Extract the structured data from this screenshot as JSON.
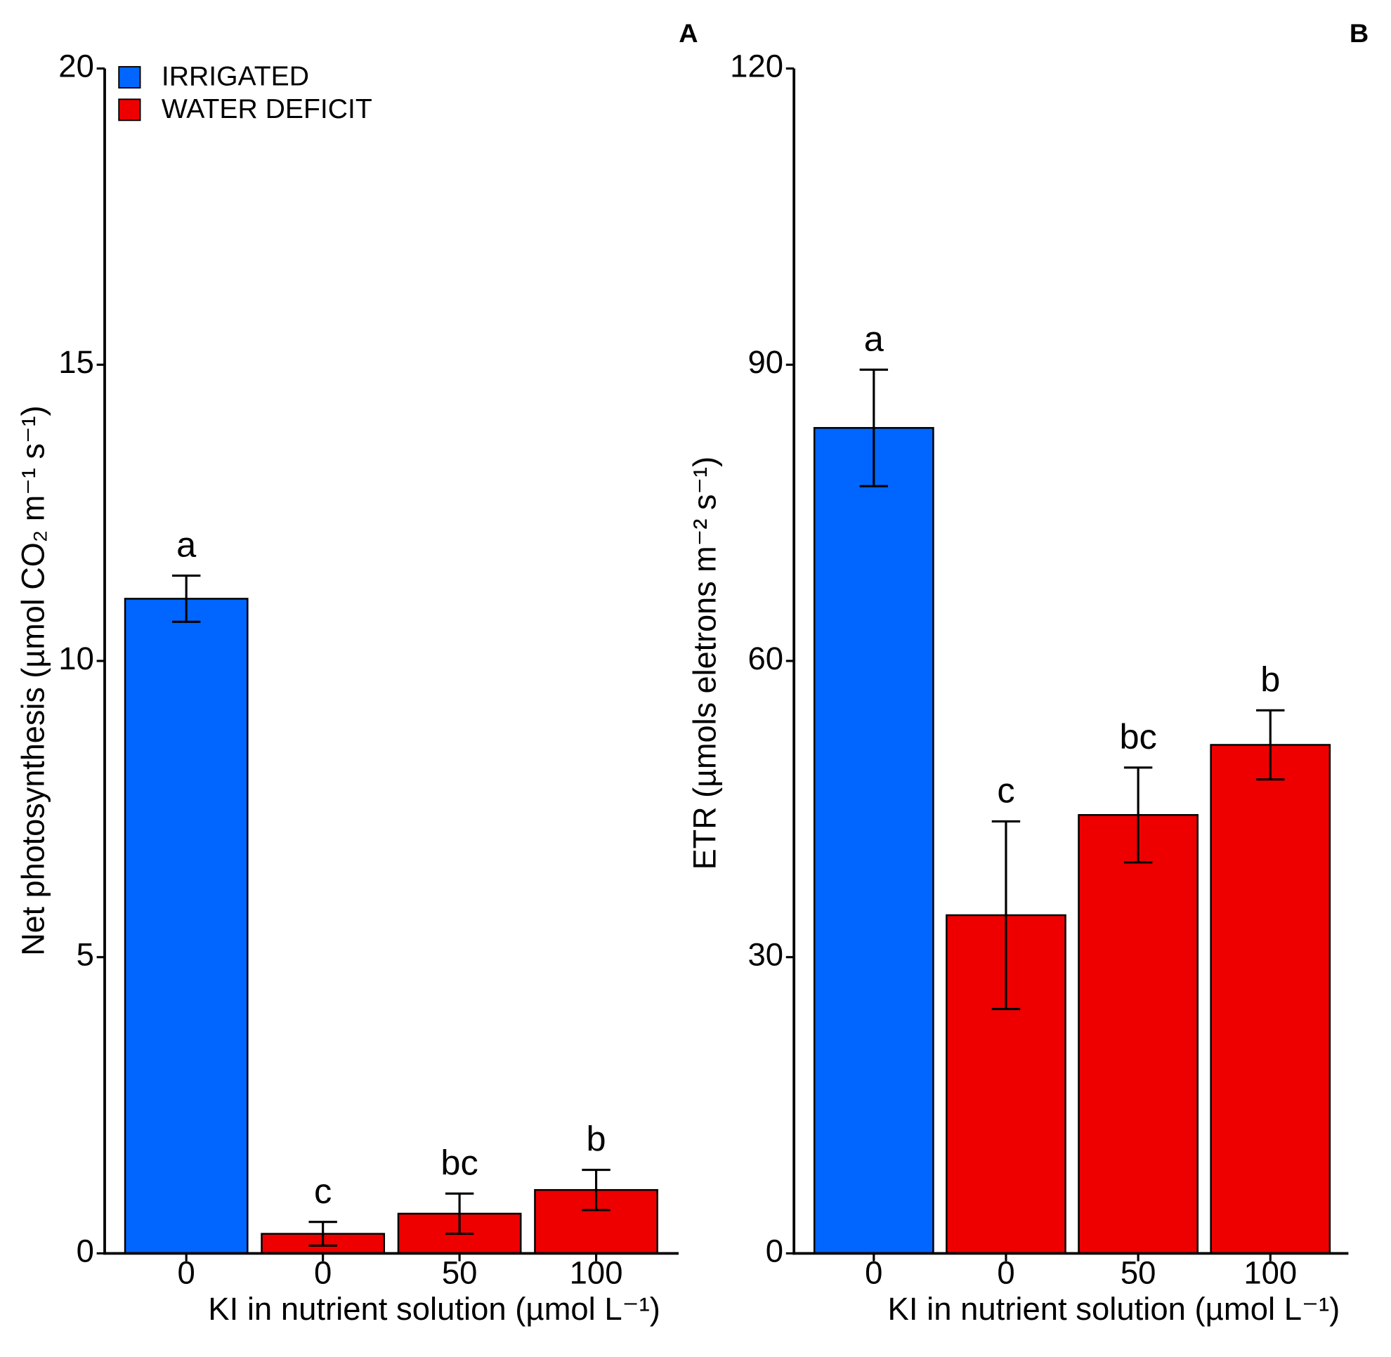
{
  "chart_data": [
    {
      "type": "bar",
      "panel": "A",
      "y_label": "Net photosynthesis (µmol CO₂ m⁻¹ s⁻¹)",
      "x_label": "KI in nutrient solution (µmol L⁻¹)",
      "categories": [
        "0",
        "0",
        "50",
        "100"
      ],
      "series": [
        {
          "name": "IRRIGATED",
          "color": "#0066ff",
          "values": [
            11.05,
            null,
            null,
            null
          ],
          "errors": [
            0.39,
            null,
            null,
            null
          ]
        },
        {
          "name": "WATER DEFICIT",
          "color": "#ee0000",
          "values": [
            null,
            0.33,
            0.67,
            1.07
          ],
          "errors": [
            null,
            0.2,
            0.34,
            0.34
          ]
        }
      ],
      "annotations": [
        "a",
        "c",
        "bc",
        "b"
      ],
      "ylim": [
        0,
        20
      ],
      "yticks": [
        0,
        5,
        10,
        15,
        20
      ],
      "legend": "top-left"
    },
    {
      "type": "bar",
      "panel": "B",
      "y_label": "ETR (µmols eletrons m⁻² s⁻¹)",
      "x_label": "KI in nutrient solution (µmol L⁻¹)",
      "categories": [
        "0",
        "0",
        "50",
        "100"
      ],
      "series": [
        {
          "name": "IRRIGATED",
          "color": "#0066ff",
          "values": [
            83.6,
            null,
            null,
            null
          ],
          "errors": [
            5.9,
            null,
            null,
            null
          ]
        },
        {
          "name": "WATER DEFICIT",
          "color": "#ee0000",
          "values": [
            null,
            34.25,
            44.4,
            51.5
          ],
          "errors": [
            null,
            9.5,
            4.8,
            3.5
          ]
        }
      ],
      "annotations": [
        "a",
        "c",
        "bc",
        "b"
      ],
      "ylim": [
        0,
        120
      ],
      "yticks": [
        0,
        30,
        60,
        90,
        120
      ]
    }
  ]
}
